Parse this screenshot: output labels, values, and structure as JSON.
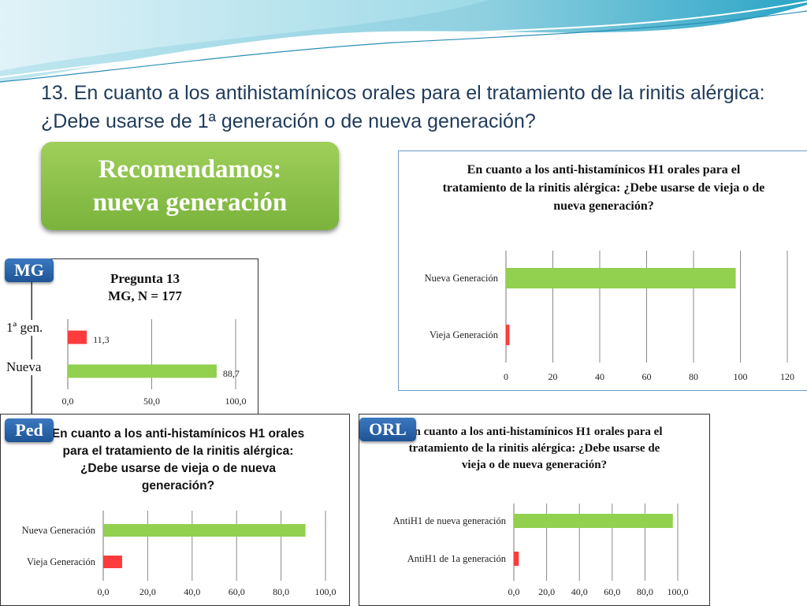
{
  "slide": {
    "title": "13. En cuanto a los antihistamínicos orales para el tratamiento de la rinitis alérgica: ¿Debe usarse de 1ª generación o de nueva generación?",
    "recommend_line1": "Recomendamos:",
    "recommend_line2": "nueva generación"
  },
  "badges": {
    "mg": "MG",
    "ped": "Ped",
    "orl": "ORL"
  },
  "side_labels": {
    "first_gen": "1ª gen.",
    "new_gen": "Nueva"
  },
  "colors": {
    "green": "#92d050",
    "red": "#ff3b3b",
    "badge_blue": "#2e6db4",
    "recommend_green": "#8cc152"
  },
  "chart_data": [
    {
      "id": "general",
      "type": "bar",
      "orientation": "horizontal",
      "title": "En cuanto a los anti-histamínicos H1 orales para el tratamiento de la rinitis alérgica: ¿Debe usarse de vieja o de nueva generación?",
      "categories": [
        "Nueva Generación",
        "Vieja Generación"
      ],
      "values": [
        98,
        1.5
      ],
      "bar_colors": [
        "#92d050",
        "#ff3b3b"
      ],
      "xlim": [
        0,
        120
      ],
      "ticks": [
        "0",
        "20",
        "40",
        "60",
        "80",
        "100",
        "120"
      ],
      "grid": true
    },
    {
      "id": "mg",
      "type": "bar",
      "orientation": "horizontal",
      "title_line1": "Pregunta 13",
      "title_line2": "MG, N = 177",
      "categories": [
        "1ª gen.",
        "Nueva"
      ],
      "values": [
        11.3,
        88.7
      ],
      "data_labels": [
        "11,3",
        "88,7"
      ],
      "bar_colors": [
        "#ff3b3b",
        "#92d050"
      ],
      "xlim": [
        0,
        100
      ],
      "ticks": [
        "0,0",
        "50,0",
        "100,0"
      ],
      "grid": true
    },
    {
      "id": "ped",
      "type": "bar",
      "orientation": "horizontal",
      "title": "En cuanto a los anti-histamínicos H1 orales para el tratamiento de la rinitis alérgica: ¿Debe usarse de vieja o de nueva generación?",
      "categories": [
        "Nueva Generación",
        "Vieja Generación"
      ],
      "values": [
        91,
        8.5
      ],
      "bar_colors": [
        "#92d050",
        "#ff3b3b"
      ],
      "xlim": [
        0,
        100
      ],
      "ticks": [
        "0,0",
        "20,0",
        "40,0",
        "60,0",
        "80,0",
        "100,0"
      ],
      "grid": true
    },
    {
      "id": "orl",
      "type": "bar",
      "orientation": "horizontal",
      "title": "En cuanto a los anti-histamínicos H1 orales para el tratamiento de la rinitis alérgica: ¿Debe usarse de vieja o de nueva generación?",
      "categories": [
        "AntiH1 de nueva generación",
        "AntiH1 de 1a generación"
      ],
      "values": [
        97,
        3
      ],
      "bar_colors": [
        "#92d050",
        "#ff3b3b"
      ],
      "xlim": [
        0,
        100
      ],
      "ticks": [
        "0,0",
        "20,0",
        "40,0",
        "60,0",
        "80,0",
        "100,0"
      ],
      "grid": true
    }
  ]
}
